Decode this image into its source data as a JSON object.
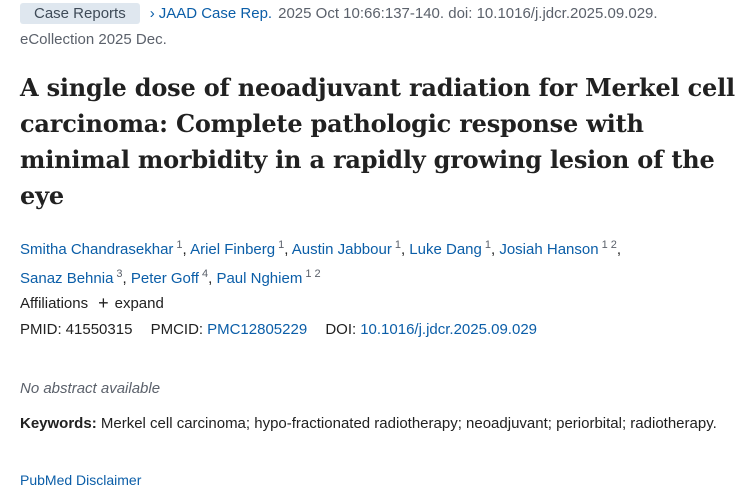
{
  "header": {
    "badge": "Case Reports",
    "journal": "JAAD Case Rep.",
    "citation": "2025 Oct 10:66:137-140. doi: 10.1016/j.jdcr.2025.09.029.",
    "ecollection": "eCollection 2025 Dec."
  },
  "title": "A single dose of neoadjuvant radiation for Merkel cell carcinoma: Complete pathologic response with minimal morbidity in a rapidly growing lesion of the eye",
  "authors": [
    {
      "name": "Smitha Chandrasekhar",
      "aff": "1"
    },
    {
      "name": "Ariel Finberg",
      "aff": "1"
    },
    {
      "name": "Austin Jabbour",
      "aff": "1"
    },
    {
      "name": "Luke Dang",
      "aff": "1"
    },
    {
      "name": "Josiah Hanson",
      "aff": "1 2"
    },
    {
      "name": "Sanaz Behnia",
      "aff": "3"
    },
    {
      "name": "Peter Goff",
      "aff": "4"
    },
    {
      "name": "Paul Nghiem",
      "aff": "1 2"
    }
  ],
  "affiliations": {
    "label": "Affiliations",
    "expand": "expand"
  },
  "ids": {
    "pmid_label": "PMID:",
    "pmid": "41550315",
    "pmcid_label": "PMCID:",
    "pmcid": "PMC12805229",
    "doi_label": "DOI:",
    "doi": "10.1016/j.jdcr.2025.09.029"
  },
  "no_abstract": "No abstract available",
  "keywords": {
    "label": "Keywords:",
    "text": "Merkel cell carcinoma; hypo-fractionated radiotherapy; neoadjuvant; periorbital; radiotherapy."
  },
  "disclaimer": "PubMed Disclaimer",
  "colors": {
    "link": "#0b5ea8",
    "badge_bg": "#dfe7ef",
    "muted": "#5b616b"
  },
  "icons": {
    "chevron": "chevron-right-icon",
    "expand": "plus-icon"
  }
}
